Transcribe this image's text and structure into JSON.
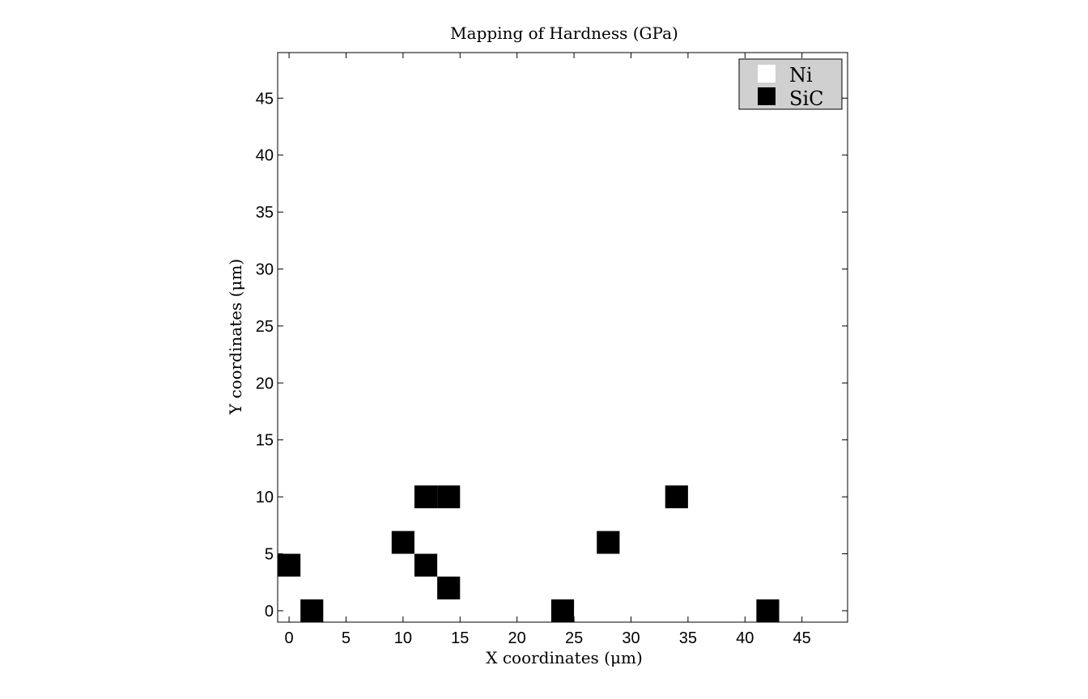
{
  "chart_data": {
    "type": "heatmap",
    "title": "Mapping of Hardness (GPa)",
    "xlabel": "X coordinates (μm)",
    "ylabel": "Y coordinates (μm)",
    "xlim": [
      -1,
      49
    ],
    "ylim": [
      -1,
      49
    ],
    "x_ticks": [
      "0",
      "5",
      "10",
      "15",
      "20",
      "25",
      "30",
      "35",
      "40",
      "45"
    ],
    "y_ticks": [
      "0",
      "5",
      "10",
      "15",
      "20",
      "25",
      "30",
      "35",
      "40",
      "45"
    ],
    "cell_size": 2,
    "grid": false,
    "legend": {
      "position": "top-right",
      "entries": [
        {
          "label": "Ni",
          "color": "#ffffff"
        },
        {
          "label": "SiC",
          "color": "#000000"
        }
      ]
    },
    "rows": [
      "0100000000001000000001000000000001000000000000000000000000000000",
      "0000000100000000000000000000000000000000000000000000000000000000",
      "1000001000000000000000000000000000000000000000000000000000000000",
      "0000010000000010000000000000000000000000000000000000000000000000",
      "0000000000000000000000000000000000000000000000000000000000000000",
      "0000001100000000010000000000000000000000000000000000000000000000",
      "0000000000000000000000000000000000000000000000000000000000000000",
      "0000000000000000000000000000000000000000000000000000000000000000",
      "0000000000000000000000000000000000000000000000000000000000000000",
      "0000000000000000000000000000000000000000000000000000000000000000",
      "0000000000000000000000000000000000000000000000000000000000000000",
      "0000000000000000000000000000000000000000000000000000000000000000",
      "0000000000000000000000000000000000000000000000000000000000000000",
      "0000000000000000000000000000000000000000000000000000000000000000",
      "0000000000000000000000000000000000000000000000000000000000000000",
      "0000000000000000000000000000000000000000000000000000000000000000",
      "0000000000000000000000000000000000000000000000000000000000000000",
      "0000000000000000000000000000000000000000000000000000000000000000",
      "0000000000000000000000000000000000000000000000000000000000000000",
      "0000000000000000000000000000000000000000000000000000000000000000",
      "0000000000000000000000000000000000000000000000000000000000000000",
      "0000000000000000000000000000000000000000000000000000000000000000",
      "0000000000000000000000000000000000000000000000000000000000000000",
      "0000000000000000000000000000000000000000000000000000000000000000",
      "0000000000000000000000000000000000000000000000000000000000000000"
    ]
  }
}
